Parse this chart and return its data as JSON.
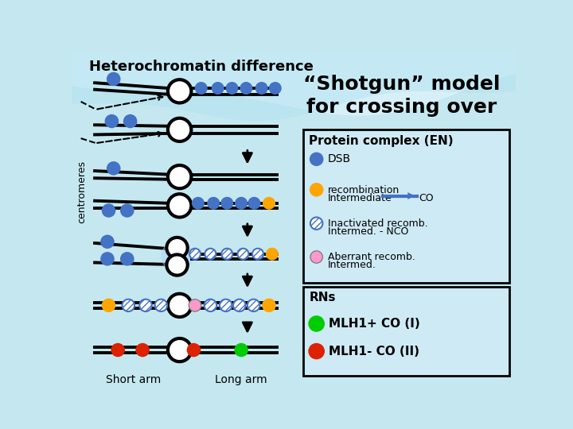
{
  "title": "Heterochromatin difference",
  "bg_color": "#c5e8f0",
  "blue": "#4472c4",
  "orange": "#ffa500",
  "pink": "#ff99cc",
  "green": "#00cc00",
  "red": "#dd2200",
  "legend_box1_title": "Protein complex (EN)",
  "legend_box2_title": "RNs",
  "shotgun_line1": "“Shotgun” model",
  "shotgun_line2": "for crossing over",
  "centromeres_label": "centromeres",
  "dsb_label": "DSB",
  "recomb_label1": "recombination",
  "recomb_label2": "Intermediate",
  "co_label": "CO",
  "inact_label1": "Inactivated recomb.",
  "inact_label2": "Intermed. - NCO",
  "aberrant_label1": "Aberrant recomb.",
  "aberrant_label2": "Intermed.",
  "rns_label": "RNs",
  "mlh1p_label": "MLH1+ CO (I)",
  "mlh1m_label": "MLH1- CO (II)",
  "short_arm": "Short arm",
  "long_arm": "Long arm"
}
